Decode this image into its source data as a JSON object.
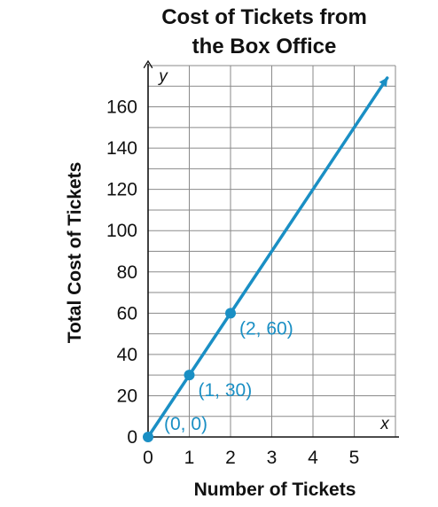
{
  "chart_data": {
    "type": "line",
    "title_lines": [
      "Cost of Tickets from",
      "the Box Office"
    ],
    "xlabel": "Number of Tickets",
    "ylabel": "Total Cost of Tickets",
    "x_var": "x",
    "y_var": "y",
    "xlim": [
      0,
      6
    ],
    "ylim": [
      0,
      180
    ],
    "x_ticks": [
      0,
      1,
      2,
      3,
      4,
      5
    ],
    "y_ticks": [
      0,
      20,
      40,
      60,
      80,
      100,
      120,
      140,
      160
    ],
    "grid": true,
    "line_color": "#1a8fc4",
    "line": {
      "x": [
        0,
        5.8
      ],
      "y": [
        0,
        174
      ],
      "arrow_end": true
    },
    "points": [
      {
        "x": 0,
        "y": 0,
        "label": "(0, 0)"
      },
      {
        "x": 1,
        "y": 30,
        "label": "(1, 30)"
      },
      {
        "x": 2,
        "y": 60,
        "label": "(2, 60)"
      }
    ]
  }
}
